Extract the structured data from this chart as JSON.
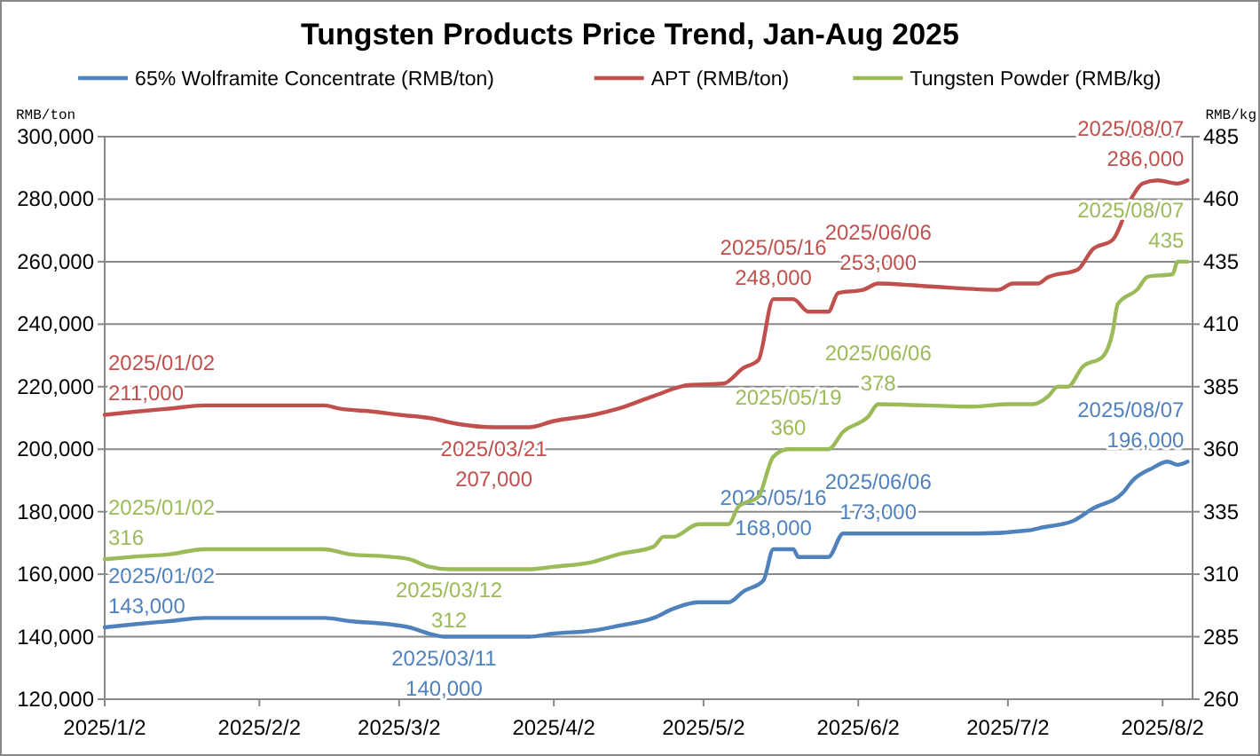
{
  "chart_data": {
    "type": "line",
    "title": "Tungsten Products Price Trend, Jan-Aug 2025",
    "ylabel": "RMB/ton",
    "y2label": "RMB/kg",
    "legend": "top",
    "grid": "y",
    "marker": "none",
    "line_style": "solid",
    "xlim": [
      "2025-01-02",
      "2025-08-08"
    ],
    "xticks": [
      {
        "value": "2025-01-02",
        "label": "2025/1/2"
      },
      {
        "value": "2025-02-02",
        "label": "2025/2/2"
      },
      {
        "value": "2025-03-02",
        "label": "2025/3/2"
      },
      {
        "value": "2025-04-02",
        "label": "2025/4/2"
      },
      {
        "value": "2025-05-02",
        "label": "2025/5/2"
      },
      {
        "value": "2025-06-02",
        "label": "2025/6/2"
      },
      {
        "value": "2025-07-02",
        "label": "2025/7/2"
      },
      {
        "value": "2025-08-02",
        "label": "2025/8/2"
      }
    ],
    "ylim": [
      120000,
      300000
    ],
    "yticks": [
      {
        "value": 120000,
        "label": "120,000"
      },
      {
        "value": 140000,
        "label": "140,000"
      },
      {
        "value": 160000,
        "label": "160,000"
      },
      {
        "value": 180000,
        "label": "180,000"
      },
      {
        "value": 200000,
        "label": "200,000"
      },
      {
        "value": 220000,
        "label": "220,000"
      },
      {
        "value": 240000,
        "label": "240,000"
      },
      {
        "value": 260000,
        "label": "260,000"
      },
      {
        "value": 280000,
        "label": "280,000"
      },
      {
        "value": 300000,
        "label": "300,000"
      }
    ],
    "y2lim": [
      260,
      485
    ],
    "y2ticks": [
      260,
      285,
      310,
      335,
      360,
      385,
      410,
      435,
      460,
      485
    ],
    "series": [
      {
        "name": "65% Wolframite Concentrate (RMB/ton)",
        "color": "#4f81bd",
        "x": [
          "2025-01-02",
          "2025-01-08",
          "2025-01-15",
          "2025-01-22",
          "2025-02-15",
          "2025-02-20",
          "2025-02-28",
          "2025-03-04",
          "2025-03-08",
          "2025-03-11",
          "2025-03-28",
          "2025-04-02",
          "2025-04-10",
          "2025-04-15",
          "2025-04-22",
          "2025-04-26",
          "2025-05-01",
          "2025-05-07",
          "2025-05-10",
          "2025-05-14",
          "2025-05-16",
          "2025-05-20",
          "2025-05-21",
          "2025-05-27",
          "2025-05-30",
          "2025-06-06",
          "2025-06-26",
          "2025-07-06",
          "2025-07-09",
          "2025-07-15",
          "2025-07-19",
          "2025-07-25",
          "2025-07-27",
          "2025-07-31",
          "2025-08-03",
          "2025-08-05",
          "2025-08-07"
        ],
        "values": [
          143000,
          144000,
          145000,
          146000,
          146000,
          145000,
          144000,
          143000,
          141000,
          140000,
          140000,
          141000,
          142000,
          143500,
          146000,
          149000,
          151000,
          151000,
          154500,
          158000,
          168000,
          168000,
          165500,
          165500,
          173000,
          173000,
          173000,
          174000,
          175000,
          177000,
          181000,
          186000,
          190000,
          194000,
          196000,
          195000,
          196000
        ],
        "value_labels": [
          "2025/01/02 143,000",
          null,
          null,
          null,
          null,
          null,
          null,
          null,
          null,
          "2025/03/11 140,000",
          null,
          null,
          null,
          null,
          null,
          null,
          null,
          null,
          null,
          null,
          "2025/05/16 168,000",
          null,
          null,
          null,
          null,
          "2025/06/06 173,000",
          null,
          null,
          null,
          null,
          null,
          null,
          null,
          null,
          null,
          null,
          "2025/08/07 196,000"
        ]
      },
      {
        "name": "APT (RMB/ton)",
        "color": "#c0504d",
        "x": [
          "2025-01-02",
          "2025-01-08",
          "2025-01-15",
          "2025-01-22",
          "2025-02-15",
          "2025-02-18",
          "2025-02-25",
          "2025-03-02",
          "2025-03-08",
          "2025-03-14",
          "2025-03-21",
          "2025-03-28",
          "2025-04-02",
          "2025-04-10",
          "2025-04-15",
          "2025-04-22",
          "2025-04-29",
          "2025-05-06",
          "2025-05-10",
          "2025-05-13",
          "2025-05-16",
          "2025-05-20",
          "2025-05-23",
          "2025-05-27",
          "2025-05-29",
          "2025-06-03",
          "2025-06-06",
          "2025-06-17",
          "2025-06-30",
          "2025-07-03",
          "2025-07-08",
          "2025-07-10",
          "2025-07-16",
          "2025-07-19",
          "2025-07-23",
          "2025-07-27",
          "2025-07-29",
          "2025-08-01",
          "2025-08-05",
          "2025-08-07"
        ],
        "values": [
          211000,
          212000,
          213000,
          214000,
          214000,
          213000,
          212000,
          211000,
          210000,
          208000,
          207000,
          207000,
          209000,
          211000,
          213000,
          217000,
          220500,
          221000,
          226000,
          228500,
          248000,
          248000,
          244000,
          244000,
          250000,
          251000,
          253000,
          252000,
          251000,
          253000,
          253000,
          255000,
          257500,
          264000,
          267000,
          281000,
          285000,
          286000,
          285000,
          286000
        ],
        "value_labels": [
          "2025/01/02 211,000",
          null,
          null,
          null,
          null,
          null,
          null,
          null,
          null,
          null,
          "2025/03/21 207,000",
          null,
          null,
          null,
          null,
          null,
          null,
          null,
          null,
          null,
          "2025/05/16 248,000",
          null,
          null,
          null,
          null,
          null,
          "2025/06/06 253,000",
          null,
          null,
          null,
          null,
          null,
          null,
          null,
          null,
          null,
          null,
          null,
          null,
          "2025/08/07 286,000"
        ]
      },
      {
        "name": "Tungsten Powder (RMB/kg)",
        "color": "#9bbb59",
        "axis": "y2",
        "x": [
          "2025-01-02",
          "2025-01-08",
          "2025-01-15",
          "2025-01-22",
          "2025-02-15",
          "2025-02-20",
          "2025-02-28",
          "2025-03-04",
          "2025-03-08",
          "2025-03-12",
          "2025-03-28",
          "2025-04-02",
          "2025-04-10",
          "2025-04-15",
          "2025-04-22",
          "2025-04-24",
          "2025-04-26",
          "2025-05-01",
          "2025-05-07",
          "2025-05-09",
          "2025-05-13",
          "2025-05-16",
          "2025-05-19",
          "2025-05-27",
          "2025-05-30",
          "2025-06-04",
          "2025-06-06",
          "2025-06-25",
          "2025-07-02",
          "2025-07-07",
          "2025-07-10",
          "2025-07-12",
          "2025-07-14",
          "2025-07-17",
          "2025-07-21",
          "2025-07-23",
          "2025-07-24",
          "2025-07-28",
          "2025-07-30",
          "2025-08-04",
          "2025-08-05",
          "2025-08-07"
        ],
        "values": [
          316,
          317,
          318,
          320,
          320,
          318,
          317,
          316,
          313,
          312,
          312,
          313,
          315,
          318,
          321,
          325,
          325,
          330,
          330,
          337,
          341,
          357,
          360,
          360,
          367,
          373,
          378,
          377,
          378,
          378,
          381,
          385,
          385,
          393,
          397,
          407,
          418,
          424,
          429,
          430,
          435,
          435
        ],
        "value_labels": [
          "2025/01/02 316",
          null,
          null,
          null,
          null,
          null,
          null,
          null,
          null,
          "2025/03/12 312",
          null,
          null,
          null,
          null,
          null,
          null,
          null,
          null,
          null,
          null,
          null,
          null,
          "2025/05/19 360",
          null,
          null,
          null,
          "2025/06/06 378",
          null,
          null,
          null,
          null,
          null,
          null,
          null,
          null,
          null,
          null,
          null,
          null,
          null,
          null,
          "2025/08/07 435"
        ]
      }
    ]
  }
}
